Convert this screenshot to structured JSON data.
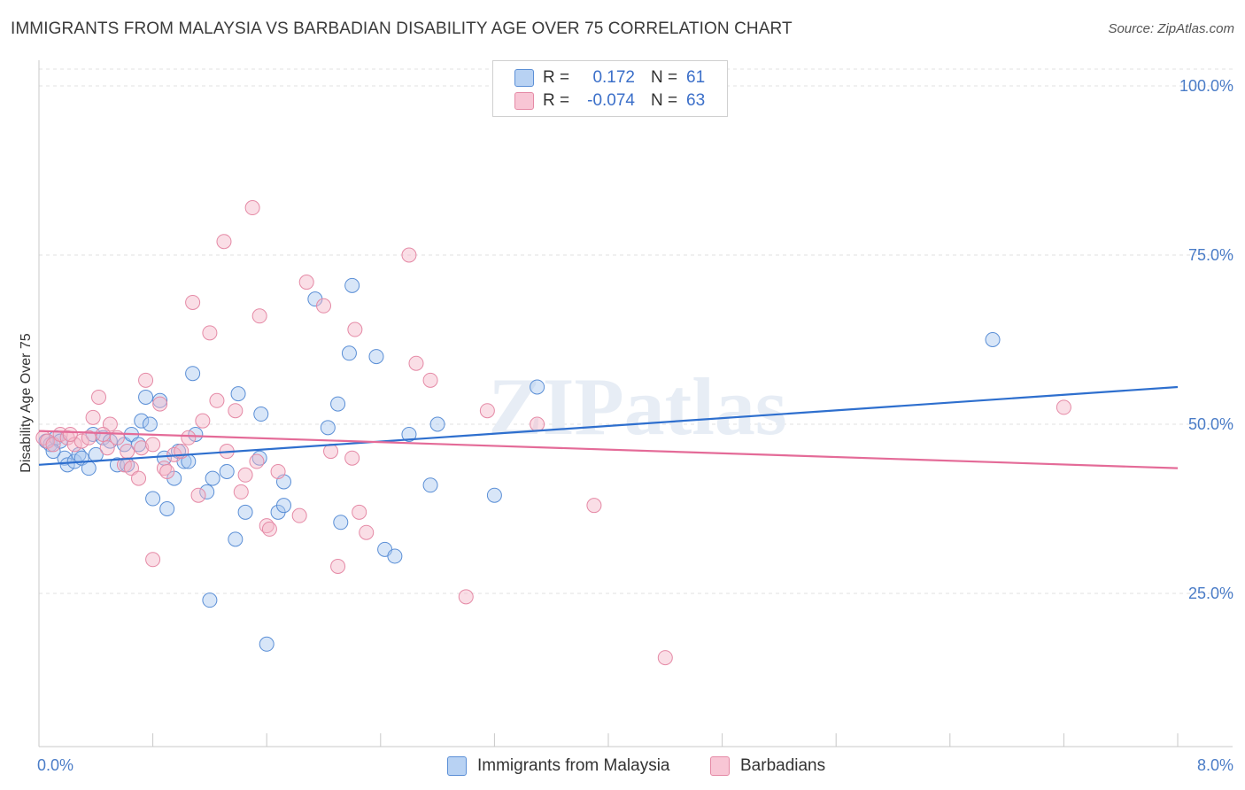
{
  "header": {
    "title": "IMMIGRANTS FROM MALAYSIA VS BARBADIAN DISABILITY AGE OVER 75 CORRELATION CHART",
    "source": "Source: ZipAtlas.com"
  },
  "legend": {
    "rows": [
      {
        "r_label": "R =",
        "r_value": "0.172",
        "n_label": "N =",
        "n_value": "61"
      },
      {
        "r_label": "R =",
        "r_value": "-0.074",
        "n_label": "N =",
        "n_value": "63"
      }
    ]
  },
  "bottom_legend": {
    "series1": "Immigrants from Malaysia",
    "series2": "Barbadians"
  },
  "watermark": "ZIPatlas",
  "colors": {
    "blue_fill": "#a9c8f0",
    "blue_stroke": "#5b8fd6",
    "blue_line": "#2e6fce",
    "pink_fill": "#f5b5c8",
    "pink_stroke": "#e58aa6",
    "pink_line": "#e46b98",
    "axis_text": "#4a7cc7"
  },
  "chart_data": {
    "type": "scatter",
    "title": "IMMIGRANTS FROM MALAYSIA VS BARBADIAN DISABILITY AGE OVER 75 CORRELATION CHART",
    "xlabel": "",
    "ylabel": "Disability Age Over 75",
    "xlim": [
      0,
      8
    ],
    "ylim": [
      0,
      105
    ],
    "x_tick_labels": [
      "0.0%",
      "8.0%"
    ],
    "y_ticks": [
      25,
      50,
      75,
      100
    ],
    "y_tick_labels": [
      "25.0%",
      "50.0%",
      "75.0%",
      "100.0%"
    ],
    "grid": "horizontal dashed",
    "legend_placement": "top-center",
    "series": [
      {
        "name": "Immigrants from Malaysia",
        "color": "#5b8fd6",
        "trend": {
          "x": [
            0,
            8
          ],
          "y": [
            44.0,
            55.5
          ]
        },
        "points": [
          [
            0.05,
            47.5
          ],
          [
            0.08,
            47.0
          ],
          [
            0.12,
            48.0
          ],
          [
            0.15,
            47.5
          ],
          [
            0.18,
            45.0
          ],
          [
            0.2,
            44.0
          ],
          [
            0.25,
            44.5
          ],
          [
            0.28,
            45.5
          ],
          [
            0.3,
            45.0
          ],
          [
            0.35,
            43.5
          ],
          [
            0.38,
            48.5
          ],
          [
            0.4,
            45.5
          ],
          [
            0.45,
            48.0
          ],
          [
            0.5,
            47.5
          ],
          [
            0.55,
            44.0
          ],
          [
            0.6,
            47.0
          ],
          [
            0.62,
            44.0
          ],
          [
            0.65,
            48.5
          ],
          [
            0.7,
            47.0
          ],
          [
            0.72,
            50.5
          ],
          [
            0.75,
            54.0
          ],
          [
            0.78,
            50.0
          ],
          [
            0.8,
            39.0
          ],
          [
            0.85,
            53.5
          ],
          [
            0.88,
            45.0
          ],
          [
            0.9,
            37.5
          ],
          [
            0.95,
            42.0
          ],
          [
            0.98,
            46.0
          ],
          [
            1.02,
            44.5
          ],
          [
            1.05,
            44.5
          ],
          [
            1.08,
            57.5
          ],
          [
            1.1,
            48.5
          ],
          [
            1.18,
            40.0
          ],
          [
            1.2,
            24.0
          ],
          [
            1.22,
            42.0
          ],
          [
            1.32,
            43.0
          ],
          [
            1.38,
            33.0
          ],
          [
            1.4,
            54.5
          ],
          [
            1.45,
            37.0
          ],
          [
            1.55,
            45.0
          ],
          [
            1.56,
            51.5
          ],
          [
            1.6,
            17.5
          ],
          [
            1.68,
            37.0
          ],
          [
            1.72,
            38.0
          ],
          [
            1.72,
            41.5
          ],
          [
            1.94,
            68.5
          ],
          [
            2.03,
            49.5
          ],
          [
            2.1,
            53.0
          ],
          [
            2.12,
            35.5
          ],
          [
            2.18,
            60.5
          ],
          [
            2.2,
            70.5
          ],
          [
            2.37,
            60.0
          ],
          [
            2.43,
            31.5
          ],
          [
            2.5,
            30.5
          ],
          [
            2.6,
            48.5
          ],
          [
            2.75,
            41.0
          ],
          [
            2.8,
            50.0
          ],
          [
            3.2,
            39.5
          ],
          [
            3.5,
            55.5
          ],
          [
            6.7,
            62.5
          ],
          [
            0.1,
            46.0
          ]
        ]
      },
      {
        "name": "Barbadians",
        "color": "#e58aa6",
        "trend": {
          "x": [
            0,
            8
          ],
          "y": [
            49.0,
            43.5
          ]
        },
        "points": [
          [
            0.03,
            48.0
          ],
          [
            0.06,
            47.5
          ],
          [
            0.1,
            47.0
          ],
          [
            0.15,
            48.5
          ],
          [
            0.2,
            48.0
          ],
          [
            0.25,
            47.0
          ],
          [
            0.3,
            47.5
          ],
          [
            0.35,
            48.0
          ],
          [
            0.38,
            51.0
          ],
          [
            0.42,
            54.0
          ],
          [
            0.48,
            46.5
          ],
          [
            0.5,
            50.0
          ],
          [
            0.55,
            48.0
          ],
          [
            0.6,
            44.0
          ],
          [
            0.62,
            46.0
          ],
          [
            0.65,
            43.5
          ],
          [
            0.7,
            42.0
          ],
          [
            0.72,
            46.5
          ],
          [
            0.75,
            56.5
          ],
          [
            0.8,
            47.0
          ],
          [
            0.8,
            30.0
          ],
          [
            0.85,
            53.0
          ],
          [
            0.88,
            43.5
          ],
          [
            0.9,
            43.0
          ],
          [
            0.95,
            45.5
          ],
          [
            1.0,
            46.0
          ],
          [
            1.05,
            48.0
          ],
          [
            1.08,
            68.0
          ],
          [
            1.12,
            39.5
          ],
          [
            1.15,
            50.5
          ],
          [
            1.2,
            63.5
          ],
          [
            1.25,
            53.5
          ],
          [
            1.3,
            77.0
          ],
          [
            1.32,
            46.0
          ],
          [
            1.38,
            52.0
          ],
          [
            1.42,
            40.0
          ],
          [
            1.45,
            42.5
          ],
          [
            1.5,
            82.0
          ],
          [
            1.53,
            44.5
          ],
          [
            1.55,
            66.0
          ],
          [
            1.6,
            35.0
          ],
          [
            1.62,
            34.5
          ],
          [
            1.68,
            43.0
          ],
          [
            1.83,
            36.5
          ],
          [
            1.88,
            71.0
          ],
          [
            2.0,
            67.5
          ],
          [
            2.05,
            46.0
          ],
          [
            2.1,
            29.0
          ],
          [
            2.2,
            45.0
          ],
          [
            2.22,
            64.0
          ],
          [
            2.25,
            37.0
          ],
          [
            2.3,
            34.0
          ],
          [
            2.6,
            75.0
          ],
          [
            2.65,
            59.0
          ],
          [
            2.75,
            56.5
          ],
          [
            3.0,
            24.5
          ],
          [
            3.15,
            52.0
          ],
          [
            3.5,
            50.0
          ],
          [
            3.9,
            38.0
          ],
          [
            4.4,
            15.5
          ],
          [
            7.2,
            52.5
          ],
          [
            0.22,
            48.5
          ],
          [
            0.45,
            48.5
          ]
        ]
      }
    ]
  }
}
